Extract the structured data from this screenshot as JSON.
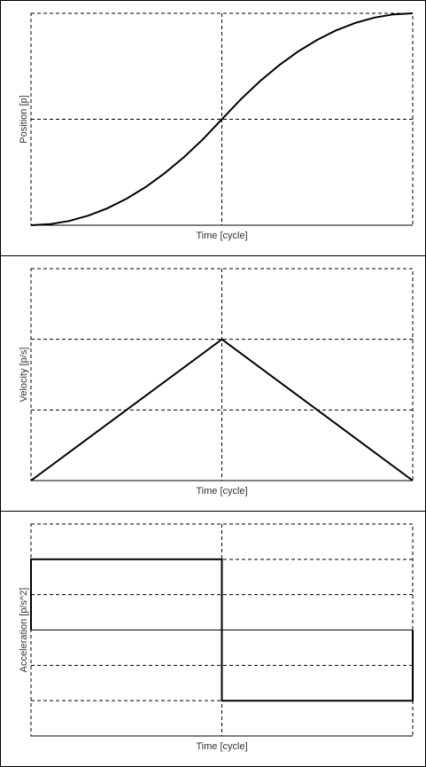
{
  "chart_data": [
    {
      "type": "line",
      "title": "",
      "xlabel": "Time [cycle]",
      "ylabel": "Position [p]",
      "xlim": [
        0,
        1
      ],
      "ylim": [
        0,
        1
      ],
      "x_gridlines": [
        0.5
      ],
      "y_gridlines": [
        0.5
      ],
      "grid": "dashed",
      "series": [
        {
          "x": [
            0,
            0.05,
            0.1,
            0.15,
            0.2,
            0.25,
            0.3,
            0.35,
            0.4,
            0.45,
            0.5,
            0.55,
            0.6,
            0.65,
            0.7,
            0.75,
            0.8,
            0.85,
            0.9,
            0.95,
            1
          ],
          "values": [
            0,
            0.005,
            0.02,
            0.045,
            0.08,
            0.125,
            0.18,
            0.245,
            0.32,
            0.405,
            0.5,
            0.595,
            0.68,
            0.755,
            0.82,
            0.875,
            0.92,
            0.955,
            0.98,
            0.995,
            1
          ]
        }
      ]
    },
    {
      "type": "line",
      "title": "",
      "xlabel": "Time [cycle]",
      "ylabel": "Velocity [p/s]",
      "xlim": [
        0,
        1
      ],
      "ylim": [
        0,
        1.5
      ],
      "x_gridlines": [
        0.5
      ],
      "y_gridlines": [
        0.5,
        1.0
      ],
      "grid": "dashed",
      "series": [
        {
          "x": [
            0,
            0.5,
            1
          ],
          "values": [
            0,
            1,
            0
          ]
        }
      ]
    },
    {
      "type": "line",
      "title": "",
      "xlabel": "Time [cycle]",
      "ylabel": "Acceleration [p/s^2]",
      "xlim": [
        0,
        1
      ],
      "ylim": [
        -3,
        3
      ],
      "x_gridlines": [
        0.5
      ],
      "y_gridlines": [
        -2,
        -1,
        1,
        2
      ],
      "zero_line": true,
      "grid": "dashed",
      "series": [
        {
          "x": [
            0,
            0,
            0.5,
            0.5,
            1,
            1
          ],
          "values": [
            0,
            2,
            2,
            -2,
            -2,
            0
          ]
        }
      ]
    }
  ]
}
